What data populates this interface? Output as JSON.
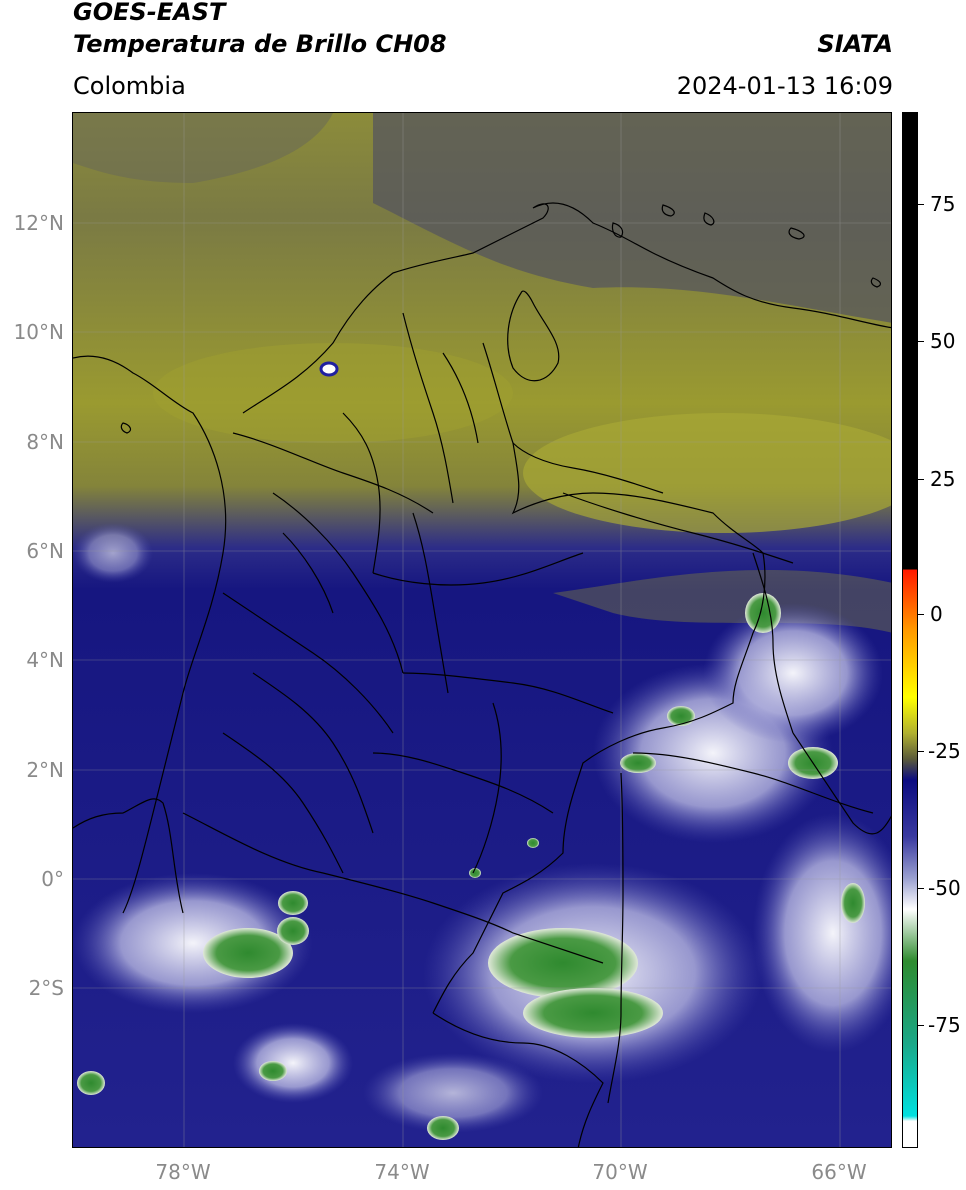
{
  "header": {
    "title_line1": "GOES-EAST",
    "title_line2": "Temperatura de Brillo CH08",
    "region": "Colombia",
    "brand": "SIATA",
    "datetime": "2024-01-13 16:09"
  },
  "map": {
    "lat_labels": [
      "12°N",
      "10°N",
      "8°N",
      "6°N",
      "4°N",
      "2°N",
      "0°",
      "2°S"
    ],
    "lon_labels": [
      "78°W",
      "74°W",
      "70°W",
      "66°W"
    ]
  },
  "colorbar": {
    "tick_labels": [
      "75",
      "50",
      "25",
      "0",
      "-25",
      "-50",
      "-75"
    ],
    "colors": {
      "white": "#ffffff",
      "cyan": "#00d8d8",
      "teal": "#1aa888",
      "green": "#2e8b2e",
      "white_mid": "#f2f2f2",
      "lavender": "#9aa0d0",
      "navy": "#0c0c80",
      "olive_dark": "#5a5a3a",
      "olive": "#b0b030",
      "yellow": "#ffff00",
      "orange": "#ff9900",
      "red": "#ff2000",
      "black": "#000000"
    }
  },
  "palette": {
    "olive_sky": "#9a9a2e",
    "olive_grey": "#6e6e52",
    "grey_north": "#55555e",
    "navy_deep": "#141480",
    "blue_mid": "#2a2a9a",
    "lavender_cloud": "#8a8ac8",
    "white_cloud": "#e8e8f4",
    "green_core": "#3c8c3c"
  }
}
